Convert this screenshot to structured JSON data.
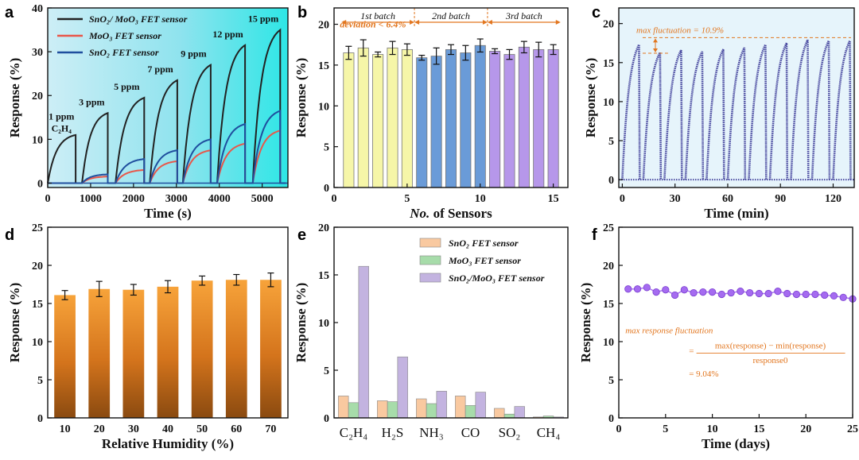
{
  "chart_data": [
    {
      "id": "a",
      "panel_label": "a",
      "type": "line",
      "xlabel": "Time (s)",
      "ylabel": "Response (%)",
      "xlim": [
        0,
        5600
      ],
      "ylim": [
        -1,
        40
      ],
      "xticks": [
        0,
        1000,
        2000,
        3000,
        4000,
        5000
      ],
      "yticks": [
        0,
        10,
        20,
        30,
        40
      ],
      "background": [
        "#cdeef6",
        "#8fe3ee",
        "#2ee6e6"
      ],
      "pulses": [
        {
          "on": 0,
          "off": 650,
          "end": 800,
          "label": "1 ppm"
        },
        {
          "on": 800,
          "off": 1400,
          "end": 1580,
          "label": "3 ppm"
        },
        {
          "on": 1580,
          "off": 2250,
          "end": 2380,
          "label": "5 ppm"
        },
        {
          "on": 2380,
          "off": 3020,
          "end": 3150,
          "label": "7 ppm"
        },
        {
          "on": 3150,
          "off": 3800,
          "end": 3950,
          "label": "9 ppm"
        },
        {
          "on": 3950,
          "off": 4600,
          "end": 4780,
          "label": "12 ppm"
        },
        {
          "on": 4780,
          "off": 5420,
          "end": 5550,
          "label": "15 ppm"
        }
      ],
      "gas_label_1": "1 ppm",
      "gas_label_2": "C₂H₄",
      "series": [
        {
          "name": "SnO₂/ MoO₃ FET sensor",
          "color": "#222222",
          "peaks": [
            11,
            16,
            19.5,
            23.5,
            27,
            31.5,
            35
          ]
        },
        {
          "name": "MoO₃ FET sensor",
          "color": "#e8574a",
          "peaks": [
            0,
            1.5,
            3,
            5,
            7.5,
            9,
            12
          ]
        },
        {
          "name": "SnO₂ FET sensor",
          "color": "#1f4e9e",
          "peaks": [
            0,
            2,
            5.5,
            7.5,
            10,
            13.5,
            16.5
          ]
        }
      ]
    },
    {
      "id": "b",
      "panel_label": "b",
      "type": "bar",
      "xlabel_prefix": "No.",
      "xlabel_suffix": " of Sensors",
      "ylabel": "Response (%)",
      "xlim": [
        0,
        16
      ],
      "ylim": [
        0,
        22
      ],
      "xticks": [
        0,
        5,
        10,
        15
      ],
      "yticks": [
        0,
        5,
        10,
        15,
        20
      ],
      "batches": [
        {
          "name": "1st batch",
          "color": "#f6f6a8",
          "values": [
            16.5,
            17.1,
            16.3,
            17.1,
            16.9
          ],
          "errors": [
            0.8,
            1.0,
            0.3,
            0.8,
            0.7
          ]
        },
        {
          "name": "2nd batch",
          "color": "#6a9bd8",
          "values": [
            15.9,
            16.1,
            16.9,
            16.5,
            17.4
          ],
          "errors": [
            0.3,
            1.0,
            0.6,
            0.9,
            0.8
          ]
        },
        {
          "name": "3rd batch",
          "color": "#b697ea",
          "values": [
            16.7,
            16.3,
            17.2,
            16.9,
            16.9
          ],
          "errors": [
            0.3,
            0.6,
            0.7,
            0.9,
            0.6
          ]
        }
      ],
      "annotation": "deviation < 6.4%"
    },
    {
      "id": "c",
      "panel_label": "c",
      "type": "line",
      "xlabel": "Time (min)",
      "ylabel": "Response (%)",
      "xlim": [
        -2,
        132
      ],
      "ylim": [
        -1,
        22
      ],
      "xticks": [
        0,
        30,
        60,
        90,
        120
      ],
      "yticks": [
        0,
        5,
        10,
        15,
        20
      ],
      "cycles": 11,
      "cycle_period": 12,
      "rise_time": 9.5,
      "peaks": [
        17.3,
        16.3,
        16.6,
        16.4,
        16.7,
        16.9,
        17.3,
        17.5,
        17.9,
        17.8,
        17.8
      ],
      "color": "#4a4aa0",
      "annotation": "max fluctuation = 10.9%"
    },
    {
      "id": "d",
      "panel_label": "d",
      "type": "bar",
      "xlabel": "Relative Humidity (%)",
      "ylabel": "Response (%)",
      "ylim": [
        0,
        25
      ],
      "yticks": [
        0,
        5,
        10,
        15,
        20,
        25
      ],
      "categories": [
        "10",
        "20",
        "30",
        "40",
        "50",
        "60",
        "70"
      ],
      "values": [
        16.1,
        16.9,
        16.8,
        17.2,
        18.0,
        18.1,
        18.1
      ],
      "errors": [
        0.6,
        1.0,
        0.7,
        0.8,
        0.6,
        0.7,
        0.9
      ]
    },
    {
      "id": "e",
      "panel_label": "e",
      "type": "bar",
      "ylabel": "Response (%)",
      "ylim": [
        0,
        20
      ],
      "yticks": [
        0,
        5,
        10,
        15,
        20
      ],
      "categories": [
        "C₂H₄",
        "H₂S",
        "NH₃",
        "CO",
        "SO₂",
        "CH₄"
      ],
      "series": [
        {
          "name": "SnO₂ FET sensor",
          "color": "#f9c9a0",
          "values": [
            2.3,
            1.8,
            2.0,
            2.3,
            1.0,
            0.1
          ]
        },
        {
          "name": "MoO₃ FET sensor",
          "color": "#a7dcaa",
          "values": [
            1.6,
            1.7,
            1.5,
            1.3,
            0.4,
            0.2
          ]
        },
        {
          "name": "SnO₂/MoO₃ FET sensor",
          "color": "#c3b3e0",
          "values": [
            15.9,
            6.4,
            2.8,
            2.7,
            1.2,
            0.1
          ]
        }
      ]
    },
    {
      "id": "f",
      "panel_label": "f",
      "type": "scatter",
      "xlabel": "Time (days)",
      "ylabel": "Response (%)",
      "xlim": [
        0,
        25
      ],
      "ylim": [
        0,
        25
      ],
      "xticks": [
        0,
        5,
        10,
        15,
        20,
        25
      ],
      "yticks": [
        0,
        5,
        10,
        15,
        20,
        25
      ],
      "x": [
        1,
        2,
        3,
        4,
        5,
        6,
        7,
        8,
        9,
        10,
        11,
        12,
        13,
        14,
        15,
        16,
        17,
        18,
        19,
        20,
        21,
        22,
        23,
        24,
        25
      ],
      "y": [
        16.9,
        16.9,
        17.1,
        16.5,
        16.8,
        16.1,
        16.8,
        16.4,
        16.5,
        16.5,
        16.2,
        16.4,
        16.6,
        16.4,
        16.3,
        16.3,
        16.6,
        16.3,
        16.2,
        16.2,
        16.2,
        16.1,
        16.0,
        15.8,
        15.6
      ],
      "color": "#a56bf0",
      "formula_title": "max response fluctuation",
      "formula_num": "max(response) − min(response)",
      "formula_den": "response0",
      "formula_eq": "=",
      "formula_result": "= 9.04%"
    }
  ]
}
